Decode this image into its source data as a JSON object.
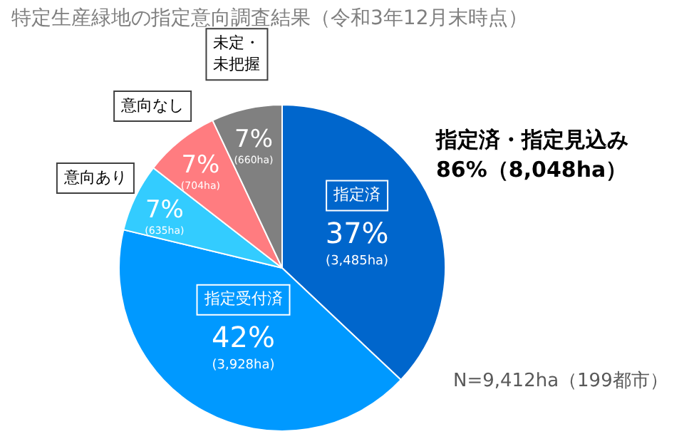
{
  "chart_data": {
    "type": "pie",
    "title": "特定生産緑地の指定意向調査結果（令和3年12月末時点）",
    "categories": [
      "指定済",
      "指定受付済",
      "意向あり",
      "意向なし",
      "未定・未把握"
    ],
    "values": [
      3485,
      3928,
      635,
      704,
      660
    ],
    "colors": [
      "#0066cc",
      "#0099ff",
      "#33ccff",
      "#ff7c80",
      "#808080"
    ],
    "value_labels": [
      "37%\n(3,485ha)",
      "42%\n(3,928ha)",
      "7%\n(635ha)",
      "7%\n(704ha)",
      "7%\n(660ha)"
    ],
    "annotations": [
      "指定済・指定見込み\n86%（8,048ha）",
      "N=9,412ha（199都市）"
    ],
    "legend": false
  }
}
